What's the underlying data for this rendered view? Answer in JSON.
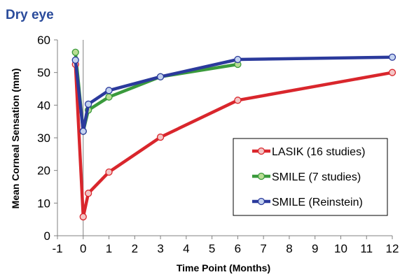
{
  "chart_data": {
    "type": "line",
    "title": "Dry eye",
    "xlabel": "Time Point (Months)",
    "ylabel": "Mean Corneal Sensation (mm)",
    "xlim": [
      -1,
      12
    ],
    "ylim": [
      0,
      60
    ],
    "xticks": [
      "-1",
      "0",
      "1",
      "2",
      "3",
      "4",
      "5",
      "6",
      "7",
      "8",
      "9",
      "10",
      "11",
      "12"
    ],
    "yticks": [
      "0",
      "10",
      "20",
      "30",
      "40",
      "50",
      "60"
    ],
    "grid": false,
    "legend_position": "bottom-right",
    "series": [
      {
        "name": "LASIK (16 studies)",
        "color": "#d9262c",
        "marker_fill": "#f4c6c6",
        "x": [
          -0.3,
          0,
          0.2,
          1,
          3,
          6,
          12
        ],
        "y": [
          52.5,
          5.8,
          13.0,
          19.5,
          30.2,
          41.5,
          50.0
        ]
      },
      {
        "name": "SMILE (7 studies)",
        "color": "#3a9a3c",
        "marker_fill": "#b9dd93",
        "x": [
          -0.3,
          0,
          0.2,
          1,
          3,
          6
        ],
        "y": [
          56.2,
          32.0,
          38.5,
          42.5,
          48.7,
          52.5
        ]
      },
      {
        "name": "SMILE (Reinstein)",
        "color": "#2b3a9c",
        "marker_fill": "#c4d3f0",
        "x": [
          -0.3,
          0,
          0.2,
          1,
          3,
          6,
          12
        ],
        "y": [
          53.8,
          32.0,
          40.3,
          44.5,
          48.7,
          54.0,
          54.7
        ]
      }
    ],
    "colors": {
      "title": "#2a4b9b",
      "axis": "#808080"
    }
  }
}
